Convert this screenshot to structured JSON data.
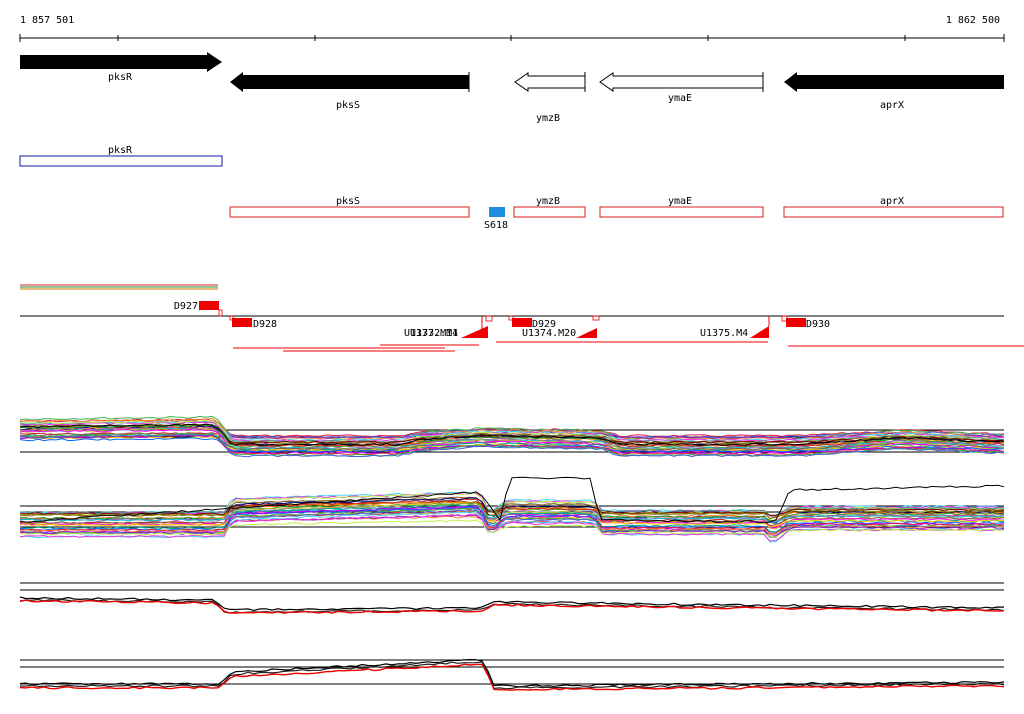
{
  "ruler": {
    "start_label": "1 857 501",
    "end_label": "1 862 500"
  },
  "genes": [
    {
      "name": "pksR",
      "strand": "+",
      "filled": true
    },
    {
      "name": "pksS",
      "strand": "-",
      "filled": true
    },
    {
      "name": "ymzB",
      "strand": "-",
      "filled": false
    },
    {
      "name": "ymaE",
      "strand": "-",
      "filled": false
    },
    {
      "name": "aprX",
      "strand": "-",
      "filled": true
    }
  ],
  "annotation_boxes": [
    {
      "name": "pksR",
      "color": "#1a1aa6"
    },
    {
      "name": "pksS",
      "color": "#d42020"
    },
    {
      "name": "ymzB",
      "color": "#d42020"
    },
    {
      "name": "ymaE",
      "color": "#d42020"
    },
    {
      "name": "aprX",
      "color": "#d42020"
    }
  ],
  "site": {
    "label": "S618",
    "color": "#1e90e0"
  },
  "features": [
    {
      "label": "D927"
    },
    {
      "label": "D928"
    },
    {
      "label": "U1373.M14"
    },
    {
      "label": "U1372.M1"
    },
    {
      "label": "D929"
    },
    {
      "label": "U1374.M20"
    },
    {
      "label": "U1375.M4"
    },
    {
      "label": "D930"
    }
  ],
  "colors": {
    "axis": "#000000",
    "feature_red": "#ee0000",
    "accent_red": "#d42020",
    "blue_box": "#1a1aa6",
    "site_blue": "#1e90e0"
  }
}
